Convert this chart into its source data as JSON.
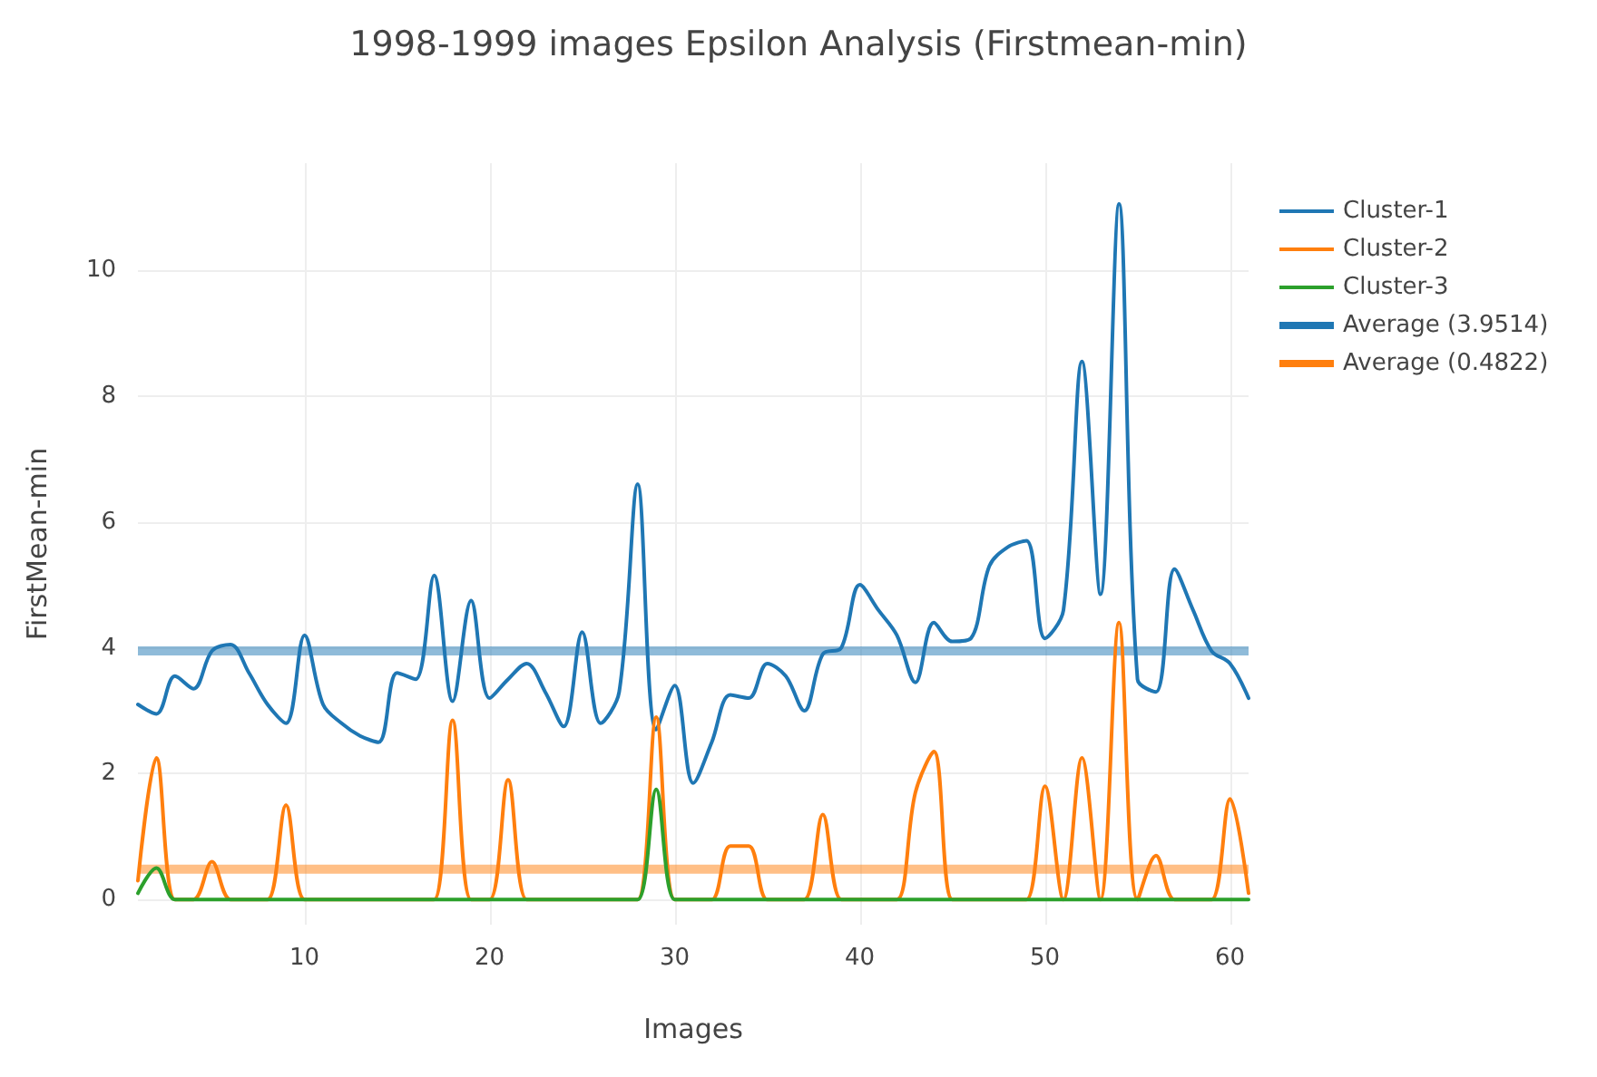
{
  "chart_data": {
    "type": "line",
    "title": "1998-1999 images Epsilon Analysis (Firstmean-min)",
    "xlabel": "Images",
    "ylabel": "FirstMean-min",
    "x": [
      1,
      2,
      3,
      4,
      5,
      6,
      7,
      8,
      9,
      10,
      11,
      12,
      13,
      14,
      15,
      16,
      17,
      18,
      19,
      20,
      21,
      22,
      23,
      24,
      25,
      26,
      27,
      28,
      29,
      30,
      31,
      32,
      33,
      34,
      35,
      36,
      37,
      38,
      39,
      40,
      41,
      42,
      43,
      44,
      45,
      46,
      47,
      48,
      49,
      50,
      51,
      52,
      53,
      54,
      55,
      56,
      57,
      58,
      59,
      60,
      61
    ],
    "series": [
      {
        "name": "Cluster-1",
        "color": "#1f77b4",
        "values": [
          3.1,
          2.95,
          3.55,
          3.35,
          3.95,
          4.05,
          3.6,
          3.1,
          2.8,
          4.2,
          3.1,
          2.8,
          2.6,
          2.5,
          3.6,
          3.5,
          5.15,
          3.15,
          4.75,
          3.2,
          3.5,
          3.75,
          3.3,
          2.75,
          4.25,
          2.8,
          3.3,
          6.6,
          2.7,
          3.4,
          1.85,
          2.5,
          3.25,
          3.2,
          3.75,
          3.55,
          3.0,
          3.9,
          4.0,
          5.0,
          4.6,
          4.2,
          3.45,
          4.4,
          4.1,
          4.15,
          5.3,
          5.6,
          5.7,
          4.15,
          4.6,
          8.55,
          4.85,
          11.05,
          3.5,
          3.3,
          5.25,
          4.6,
          3.95,
          3.75,
          3.2
        ]
      },
      {
        "name": "Cluster-2",
        "color": "#ff7f0e",
        "values": [
          0.3,
          2.25,
          0,
          0,
          0.6,
          0,
          0,
          0,
          1.5,
          0,
          0,
          0,
          0,
          0,
          0,
          0,
          0,
          2.85,
          0,
          0,
          1.9,
          0,
          0,
          0,
          0,
          0,
          0,
          0,
          2.9,
          0,
          0,
          0,
          0.85,
          0.85,
          0,
          0,
          0,
          1.35,
          0,
          0,
          0,
          0,
          1.7,
          2.35,
          0,
          0,
          0,
          0,
          0,
          1.8,
          0,
          2.25,
          0,
          4.4,
          0,
          0.7,
          0,
          0,
          0,
          1.6,
          0.1
        ]
      },
      {
        "name": "Cluster-3",
        "color": "#2ca02c",
        "values": [
          0.1,
          0.5,
          0,
          0,
          0,
          0,
          0,
          0,
          0,
          0,
          0,
          0,
          0,
          0,
          0,
          0,
          0,
          0,
          0,
          0,
          0,
          0,
          0,
          0,
          0,
          0,
          0,
          0,
          1.75,
          0,
          0,
          0,
          0,
          0,
          0,
          0,
          0,
          0,
          0,
          0,
          0,
          0,
          0,
          0,
          0,
          0,
          0,
          0,
          0,
          0,
          0,
          0,
          0,
          0,
          0,
          0,
          0,
          0,
          0,
          0,
          0
        ]
      }
    ],
    "ref_lines": [
      {
        "axis": "y",
        "value": 3.9514,
        "label": "Average (3.9514)",
        "color": "#1f77b4"
      },
      {
        "axis": "y",
        "value": 0.4822,
        "label": "Average (0.4822)",
        "color": "#ff7f0e"
      }
    ],
    "xlim": [
      1,
      61
    ],
    "xticks": [
      10,
      20,
      30,
      40,
      50,
      60
    ],
    "ylim": [
      -0.4,
      11.7
    ],
    "yticks": [
      0,
      2,
      4,
      6,
      8,
      10
    ],
    "grid": true,
    "legend": "top right",
    "marker": "none",
    "line_style": "solid"
  }
}
